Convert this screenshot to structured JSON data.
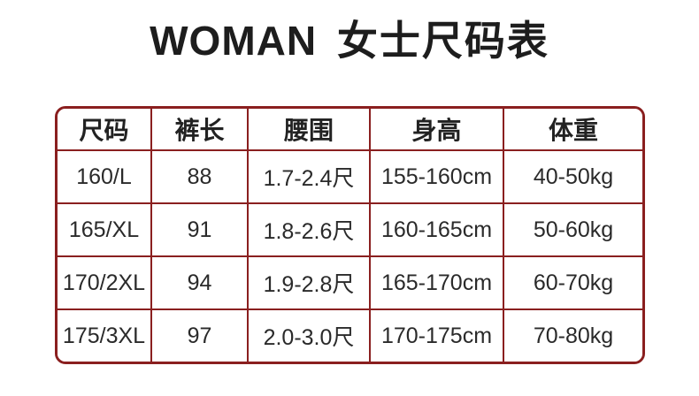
{
  "title": {
    "en": "WOMAN",
    "zh": "女士尺码表"
  },
  "colors": {
    "table_border": "#8a1f1f",
    "title_text": "#1d1d1d",
    "cell_text": "#2a2a2a",
    "background": "#ffffff"
  },
  "table": {
    "headers": [
      "尺码",
      "裤长",
      "腰围",
      "身高",
      "体重"
    ],
    "rows": [
      [
        "160/L",
        "88",
        "1.7-2.4尺",
        "155-160cm",
        "40-50kg"
      ],
      [
        "165/XL",
        "91",
        "1.8-2.6尺",
        "160-165cm",
        "50-60kg"
      ],
      [
        "170/2XL",
        "94",
        "1.9-2.8尺",
        "165-170cm",
        "60-70kg"
      ],
      [
        "175/3XL",
        "97",
        "2.0-3.0尺",
        "170-175cm",
        "70-80kg"
      ]
    ]
  }
}
